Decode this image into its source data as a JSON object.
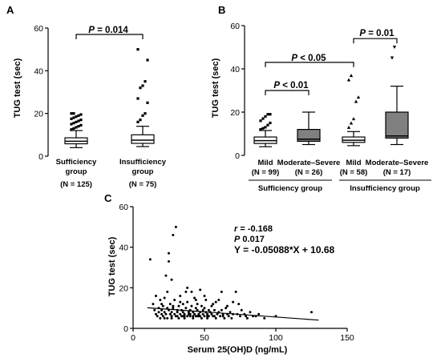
{
  "panels": {
    "a": {
      "label": "A"
    },
    "b": {
      "label": "B"
    },
    "c": {
      "label": "C"
    }
  },
  "chart_data": [
    {
      "type": "box",
      "panel": "A",
      "ylabel": "TUG test (sec)",
      "ylim": [
        0,
        60
      ],
      "yticks": [
        0,
        20,
        40,
        60
      ],
      "categories": [
        {
          "line1": "Sufficiency",
          "line2": "group",
          "line3": "(N = 125)"
        },
        {
          "line1": "Insufficiency",
          "line2": "group",
          "line3": "(N = 75)"
        }
      ],
      "boxes": [
        {
          "whisker_low": 4,
          "q1": 5.8,
          "median": 7,
          "q3": 8.6,
          "whisker_high": 12,
          "outliers": [
            12.5,
            13,
            13.5,
            14,
            14.5,
            15,
            15.5,
            16,
            16.5,
            17,
            17.5,
            18,
            18.5,
            19,
            19.5,
            20,
            20
          ]
        },
        {
          "whisker_low": 4.5,
          "q1": 6,
          "median": 7.5,
          "q3": 10,
          "whisker_high": 14,
          "outliers": [
            16,
            17,
            19,
            20,
            25,
            27,
            32,
            33,
            35,
            45,
            50
          ]
        }
      ],
      "comparison": {
        "text": "P = 0.014",
        "p_symbol": "P",
        "rest": " = 0.014",
        "level": 57
      },
      "box_color": "#ffffff"
    },
    {
      "type": "box",
      "panel": "B",
      "ylabel": "TUG test (sec)",
      "ylim": [
        0,
        60
      ],
      "yticks": [
        0,
        20,
        40,
        60
      ],
      "categories": [
        {
          "line1": "Mild",
          "line2": "(N = 99)"
        },
        {
          "line1": "Moderate–Severe",
          "line2": "(N = 26)"
        },
        {
          "line1": "Mild",
          "line2": "(N = 58)"
        },
        {
          "line1": "Moderate–Severe",
          "line2": "(N = 17)"
        }
      ],
      "groups": [
        "Sufficiency group",
        "Insufficiency group"
      ],
      "boxes": [
        {
          "whisker_low": 4,
          "q1": 5.5,
          "median": 6.8,
          "q3": 8.5,
          "whisker_high": 11.5,
          "outliers": [
            12,
            12.5,
            13,
            14,
            15,
            16,
            17,
            18,
            19,
            19
          ]
        },
        {
          "whisker_low": 5,
          "q1": 6.5,
          "median": 7.5,
          "q3": 12,
          "whisker_high": 20
        },
        {
          "whisker_low": 4.5,
          "q1": 6,
          "median": 7,
          "q3": 8.5,
          "whisker_high": 11,
          "outliers": [
            13,
            15,
            17,
            25,
            27,
            35,
            37
          ]
        },
        {
          "whisker_low": 5,
          "q1": 8,
          "median": 9,
          "q3": 20,
          "whisker_high": 32,
          "outliers": [
            45,
            50
          ]
        }
      ],
      "comparisons": [
        {
          "text": "P < 0.01",
          "p_symbol": "P",
          "rest": " < 0.01",
          "from": 0,
          "to": 1,
          "level": 30
        },
        {
          "text": "P < 0.05",
          "p_symbol": "P",
          "rest": " < 0.05",
          "from": 0,
          "to": 2,
          "level": 43
        },
        {
          "text": "P = 0.01",
          "p_symbol": "P",
          "rest": " = 0.01",
          "from": 2,
          "to": 3,
          "level": 54
        }
      ],
      "box_colors": [
        "#ffffff",
        "#808080",
        "#ffffff",
        "#808080"
      ]
    },
    {
      "type": "scatter",
      "panel": "C",
      "xlabel": "Serum 25(OH)D (ng/mL)",
      "ylabel": "TUG test (sec)",
      "xlim": [
        0,
        150
      ],
      "ylim": [
        0,
        60
      ],
      "xticks": [
        0,
        50,
        100,
        150
      ],
      "yticks": [
        0,
        20,
        40,
        60
      ],
      "stats": {
        "r_symbol": "r",
        "r_rest": " = -0.168",
        "p_symbol": "P",
        "p_rest": " 0.017",
        "equation": "Y = -0.05088*X + 10.68"
      },
      "regression": {
        "slope": -0.05088,
        "intercept": 10.68,
        "x_range": [
          10,
          130
        ]
      },
      "points": [
        [
          12,
          34
        ],
        [
          14,
          12
        ],
        [
          15,
          9
        ],
        [
          16,
          7
        ],
        [
          17,
          6
        ],
        [
          18,
          8
        ],
        [
          18,
          10
        ],
        [
          19,
          5
        ],
        [
          19,
          14
        ],
        [
          20,
          7
        ],
        [
          20,
          9
        ],
        [
          21,
          6
        ],
        [
          21,
          11
        ],
        [
          22,
          8
        ],
        [
          22,
          15
        ],
        [
          23,
          7
        ],
        [
          23,
          26
        ],
        [
          24,
          5
        ],
        [
          24,
          10
        ],
        [
          25,
          9
        ],
        [
          25,
          33
        ],
        [
          25,
          37
        ],
        [
          26,
          7
        ],
        [
          26,
          12
        ],
        [
          27,
          6
        ],
        [
          27,
          8
        ],
        [
          27,
          24
        ],
        [
          28,
          46
        ],
        [
          28,
          10
        ],
        [
          29,
          7
        ],
        [
          29,
          14
        ],
        [
          30,
          50
        ],
        [
          30,
          6
        ],
        [
          31,
          9
        ],
        [
          31,
          8
        ],
        [
          32,
          5
        ],
        [
          32,
          11
        ],
        [
          33,
          7
        ],
        [
          33,
          16
        ],
        [
          34,
          6
        ],
        [
          34,
          9
        ],
        [
          35,
          8
        ],
        [
          35,
          12
        ],
        [
          36,
          7
        ],
        [
          36,
          5
        ],
        [
          37,
          10
        ],
        [
          37,
          18
        ],
        [
          38,
          6
        ],
        [
          38,
          13
        ],
        [
          39,
          8
        ],
        [
          39,
          7
        ],
        [
          40,
          9
        ],
        [
          40,
          6
        ],
        [
          41,
          11
        ],
        [
          41,
          18
        ],
        [
          42,
          5
        ],
        [
          42,
          8
        ],
        [
          43,
          7
        ],
        [
          43,
          15
        ],
        [
          44,
          6
        ],
        [
          44,
          10
        ],
        [
          45,
          9
        ],
        [
          45,
          12
        ],
        [
          46,
          7
        ],
        [
          46,
          6
        ],
        [
          47,
          8
        ],
        [
          47,
          19
        ],
        [
          48,
          5
        ],
        [
          48,
          11
        ],
        [
          49,
          7
        ],
        [
          49,
          9
        ],
        [
          50,
          6
        ],
        [
          50,
          10
        ],
        [
          51,
          8
        ],
        [
          51,
          14
        ],
        [
          52,
          7
        ],
        [
          52,
          5
        ],
        [
          53,
          9
        ],
        [
          53,
          6
        ],
        [
          54,
          8
        ],
        [
          55,
          7
        ],
        [
          55,
          11
        ],
        [
          56,
          6
        ],
        [
          57,
          9
        ],
        [
          58,
          5
        ],
        [
          58,
          13
        ],
        [
          59,
          7
        ],
        [
          60,
          8
        ],
        [
          61,
          6
        ],
        [
          62,
          9
        ],
        [
          62,
          18
        ],
        [
          63,
          7
        ],
        [
          64,
          5
        ],
        [
          65,
          10
        ],
        [
          66,
          7
        ],
        [
          67,
          6
        ],
        [
          68,
          8
        ],
        [
          70,
          7
        ],
        [
          72,
          18
        ],
        [
          74,
          12
        ],
        [
          75,
          6
        ],
        [
          76,
          9
        ],
        [
          78,
          7
        ],
        [
          80,
          5
        ],
        [
          82,
          8
        ],
        [
          84,
          6
        ],
        [
          88,
          7
        ],
        [
          92,
          5
        ],
        [
          100,
          6
        ],
        [
          125,
          8
        ],
        [
          16,
          16
        ],
        [
          20,
          12
        ],
        [
          24,
          18
        ],
        [
          28,
          11
        ],
        [
          33,
          13
        ],
        [
          38,
          20
        ],
        [
          44,
          14
        ],
        [
          50,
          16
        ],
        [
          56,
          12
        ],
        [
          60,
          14
        ],
        [
          66,
          11
        ],
        [
          70,
          13
        ],
        [
          35,
          6
        ],
        [
          40,
          7
        ],
        [
          45,
          6
        ],
        [
          22,
          5
        ],
        [
          27,
          5
        ],
        [
          31,
          6
        ],
        [
          36,
          6
        ],
        [
          42,
          6
        ],
        [
          47,
          6
        ],
        [
          52,
          6
        ],
        [
          57,
          6
        ],
        [
          63,
          6
        ],
        [
          69,
          5
        ],
        [
          73,
          7
        ],
        [
          79,
          6
        ],
        [
          86,
          6
        ]
      ]
    }
  ]
}
